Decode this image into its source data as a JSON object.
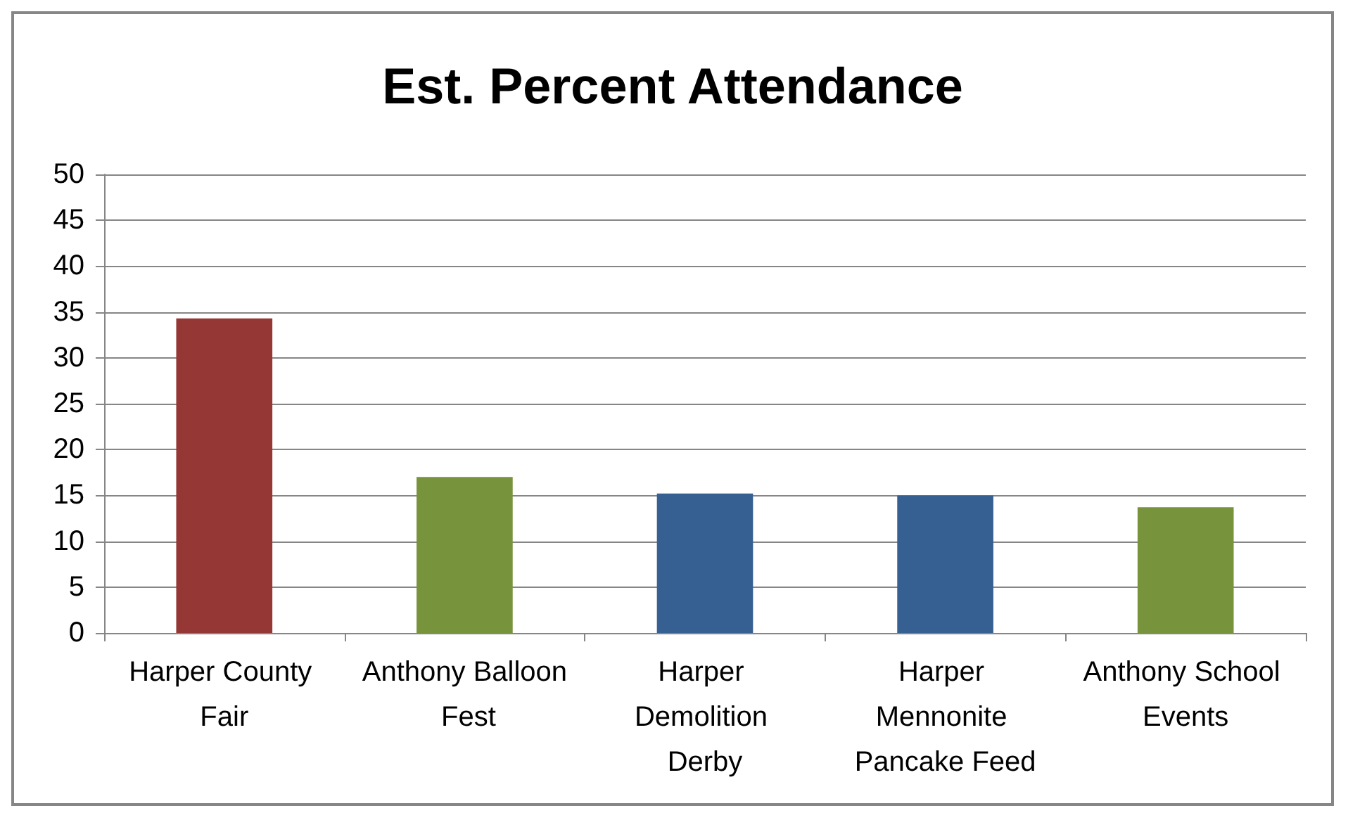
{
  "chart_data": {
    "type": "bar",
    "title": "Est. Percent Attendance",
    "categories": [
      "Harper County Fair",
      "Anthony Balloon Fest",
      "Harper Demolition Derby",
      "Harper Mennonite Pancake Feed",
      "Anthony School Events"
    ],
    "values": [
      34.3,
      17.0,
      15.2,
      15.0,
      13.7
    ],
    "colors": [
      "#953735",
      "#77933c",
      "#376092",
      "#376092",
      "#77933c"
    ],
    "ylim": [
      0,
      50
    ],
    "yticks": [
      0,
      5,
      10,
      15,
      20,
      25,
      30,
      35,
      40,
      45,
      50
    ],
    "grid": "y"
  }
}
